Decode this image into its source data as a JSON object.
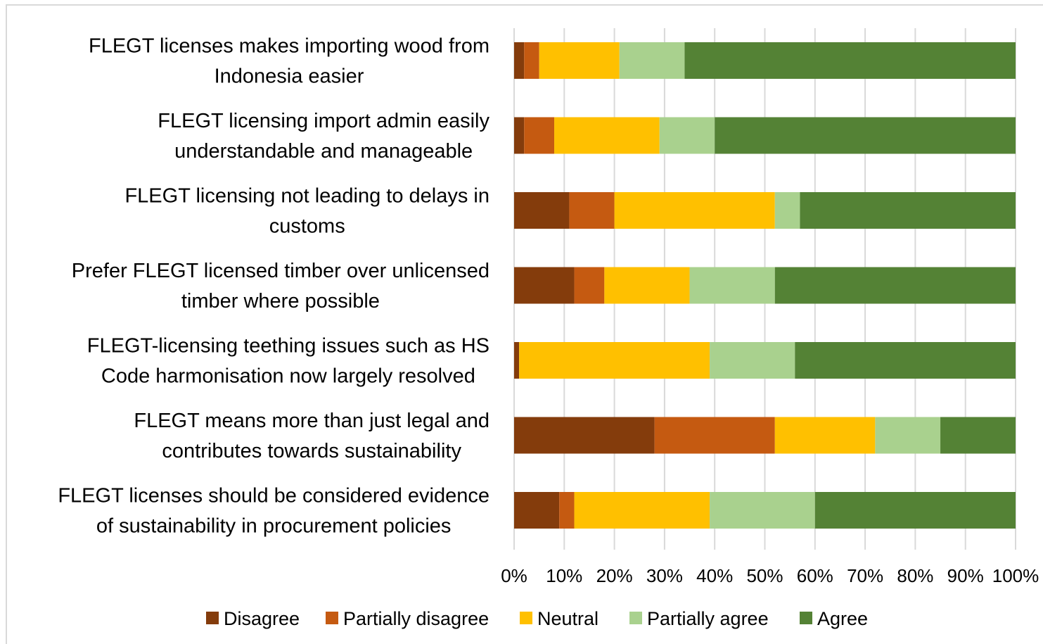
{
  "chart_data": {
    "type": "bar",
    "orientation": "horizontal",
    "stacked": "100%",
    "categories": [
      [
        "FLEGT licenses makes importing wood from",
        "Indonesia easier"
      ],
      [
        "FLEGT licensing import admin easily",
        "understandable and manageable"
      ],
      [
        "FLEGT licensing not leading to delays in",
        "customs"
      ],
      [
        "Prefer FLEGT licensed timber over unlicensed",
        "timber where possible"
      ],
      [
        "FLEGT-licensing teething issues such as HS",
        "Code harmonisation now largely resolved"
      ],
      [
        "FLEGT means more than just legal and",
        "contributes towards sustainability"
      ],
      [
        "FLEGT licenses should be considered evidence",
        "of sustainability in procurement policies"
      ]
    ],
    "series": [
      {
        "name": "Disagree",
        "color": "#843c0c",
        "values": [
          2,
          2,
          11,
          12,
          1,
          28,
          9
        ]
      },
      {
        "name": "Partially disagree",
        "color": "#c55a11",
        "values": [
          3,
          6,
          9,
          6,
          0,
          24,
          3
        ]
      },
      {
        "name": "Neutral",
        "color": "#ffc000",
        "values": [
          16,
          21,
          32,
          17,
          38,
          20,
          27
        ]
      },
      {
        "name": "Partially agree",
        "color": "#a9d18e",
        "values": [
          13,
          11,
          5,
          17,
          17,
          13,
          21
        ]
      },
      {
        "name": "Agree",
        "color": "#548235",
        "values": [
          66,
          60,
          43,
          48,
          44,
          15,
          40
        ]
      }
    ],
    "xticks": [
      "0%",
      "10%",
      "20%",
      "30%",
      "40%",
      "50%",
      "60%",
      "70%",
      "80%",
      "90%",
      "100%"
    ],
    "xlim": [
      0,
      100
    ],
    "grid": true,
    "legend_position": "bottom"
  }
}
